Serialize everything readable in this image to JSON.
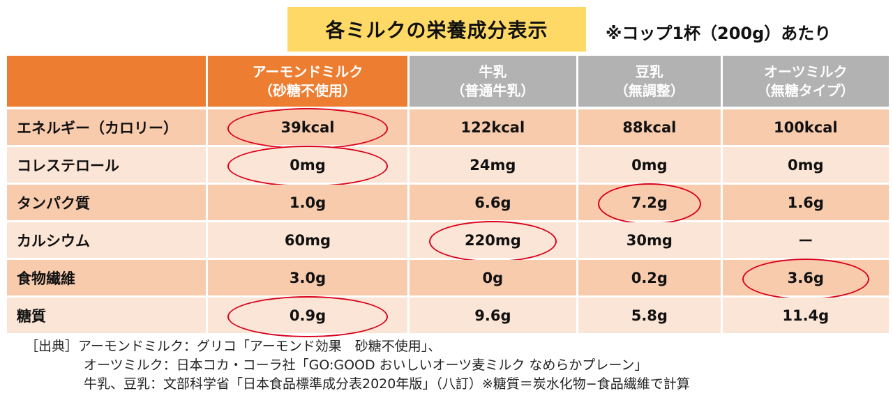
{
  "title": "各ミルクの栄養成分表示",
  "title_note": "※コップ1杯（200g）あたり",
  "columns": [
    {
      "line1": "アーモンドミルク",
      "line2": "（砂糖不使用）"
    },
    {
      "line1": "牛乳",
      "line2": "（普通牛乳）"
    },
    {
      "line1": "豆乳",
      "line2": "（無調整）"
    },
    {
      "line1": "オーツミルク",
      "line2": "（無糖タイプ）"
    }
  ],
  "rows": [
    {
      "label": "エネルギー（カロリー）",
      "values": [
        "39kcal",
        "122kcal",
        "88kcal",
        "100kcal"
      ],
      "highlight": 0
    },
    {
      "label": "コレステロール",
      "values": [
        "0mg",
        "24mg",
        "0mg",
        "0mg"
      ],
      "highlight": 0
    },
    {
      "label": "タンパク質",
      "values": [
        "1.0g",
        "6.6g",
        "7.2g",
        "1.6g"
      ],
      "highlight": 2
    },
    {
      "label": "カルシウム",
      "values": [
        "60mg",
        "220mg",
        "30mg",
        "ー"
      ],
      "highlight": 1
    },
    {
      "label": "食物繊維",
      "values": [
        "3.0g",
        "0g",
        "0.2g",
        "3.6g"
      ],
      "highlight": 3
    },
    {
      "label": "糖質",
      "values": [
        "0.9g",
        "9.6g",
        "5.8g",
        "11.4g"
      ],
      "highlight": 0
    }
  ],
  "source": {
    "line1": "［出典］アーモンドミルク：グリコ「アーモンド効果　砂糖不使用」、",
    "line2": "オーツミルク：日本コカ・コーラ社「GO:GOOD おいしいオーツ麦ミルク なめらかプレーン」",
    "line3": "牛乳、豆乳：文部科学省「日本食品標準成分表2020年版」（八訂）※糖質＝炭水化物−食品繊維で計算"
  },
  "colors": {
    "header_almond": "#ed7d31",
    "header_other": "#b2b2b2",
    "row_dark": "#f8cbad",
    "row_light": "#fbe5d6",
    "title_bg": "#ffd966",
    "circle": "#d9001b"
  }
}
